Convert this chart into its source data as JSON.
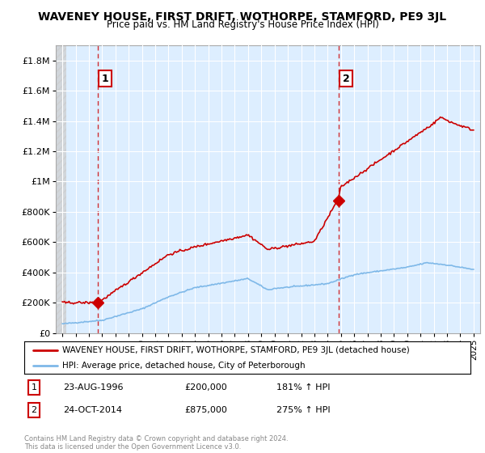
{
  "title": "WAVENEY HOUSE, FIRST DRIFT, WOTHORPE, STAMFORD, PE9 3JL",
  "subtitle": "Price paid vs. HM Land Registry's House Price Index (HPI)",
  "footer": "Contains HM Land Registry data © Crown copyright and database right 2024.\nThis data is licensed under the Open Government Licence v3.0.",
  "legend_line1": "WAVENEY HOUSE, FIRST DRIFT, WOTHORPE, STAMFORD, PE9 3JL (detached house)",
  "legend_line2": "HPI: Average price, detached house, City of Peterborough",
  "sale1_label": "1",
  "sale1_date": "23-AUG-1996",
  "sale1_price": "£200,000",
  "sale1_hpi": "181% ↑ HPI",
  "sale1_x": 1996.64,
  "sale1_y": 200000,
  "sale2_label": "2",
  "sale2_date": "24-OCT-2014",
  "sale2_price": "£875,000",
  "sale2_hpi": "275% ↑ HPI",
  "sale2_x": 2014.81,
  "sale2_y": 875000,
  "hpi_color": "#7eb8e8",
  "price_color": "#cc0000",
  "plot_bg": "#ddeeff",
  "ylim": [
    0,
    1900000
  ],
  "yticks": [
    0,
    200000,
    400000,
    600000,
    800000,
    1000000,
    1200000,
    1400000,
    1600000,
    1800000
  ],
  "ytick_labels": [
    "£0",
    "£200K",
    "£400K",
    "£600K",
    "£800K",
    "£1M",
    "£1.2M",
    "£1.4M",
    "£1.6M",
    "£1.8M"
  ],
  "xlim_left": 1993.5,
  "xlim_right": 2025.5,
  "xticks": [
    1994,
    1995,
    1996,
    1997,
    1998,
    1999,
    2000,
    2001,
    2002,
    2003,
    2004,
    2005,
    2006,
    2007,
    2008,
    2009,
    2010,
    2011,
    2012,
    2013,
    2014,
    2015,
    2016,
    2017,
    2018,
    2019,
    2020,
    2021,
    2022,
    2023,
    2024,
    2025
  ],
  "hatch_end": 1994.3
}
